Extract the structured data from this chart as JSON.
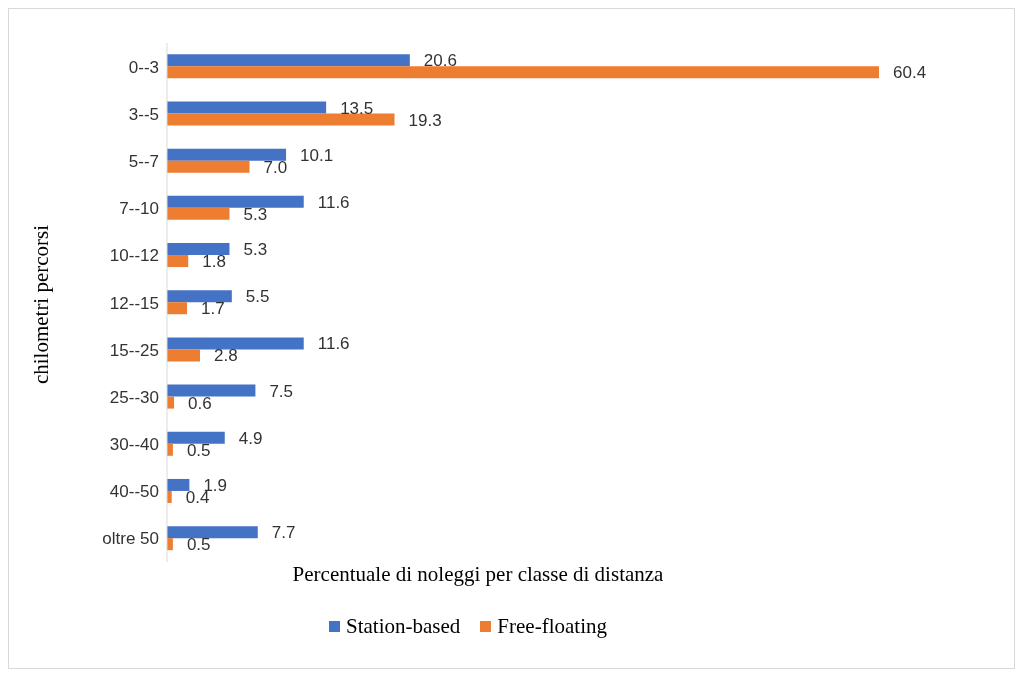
{
  "chart_data": {
    "type": "bar",
    "orientation": "horizontal",
    "xlabel": "Percentuale di noleggi per classe di distanza",
    "ylabel": "chilometri percorsi",
    "categories": [
      "0--3",
      "3--5",
      "5--7",
      "7--10",
      "10--12",
      "12--15",
      "15--25",
      "25--30",
      "30--40",
      "40--50",
      "oltre 50"
    ],
    "series": [
      {
        "name": "Station-based",
        "color": "#4472c4",
        "values": [
          20.6,
          13.5,
          10.1,
          11.6,
          5.3,
          5.5,
          11.6,
          7.5,
          4.9,
          1.9,
          7.7
        ],
        "value_labels": [
          "20.6",
          "13.5",
          "10.1",
          "11.6",
          "5.3",
          "5.5",
          "11.6",
          "7.5",
          "4.9",
          "1.9",
          "7.7"
        ]
      },
      {
        "name": "Free-floating",
        "color": "#ed7d31",
        "values": [
          60.4,
          19.3,
          7.0,
          5.3,
          1.8,
          1.7,
          2.8,
          0.6,
          0.5,
          0.4,
          0.5
        ],
        "value_labels": [
          "60.4",
          "19.3",
          "7.0",
          "5.3",
          "1.8",
          "1.7",
          "2.8",
          "0.6",
          "0.5",
          "0.4",
          "0.5"
        ]
      }
    ],
    "tick_labels": "y",
    "grid": false,
    "legend": "bottom"
  }
}
